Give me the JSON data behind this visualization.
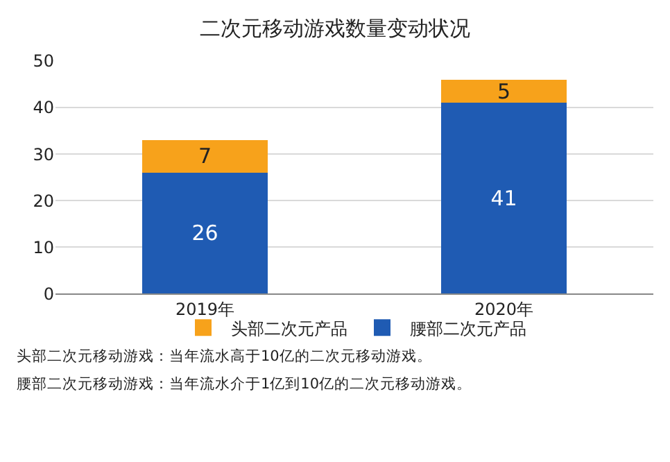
{
  "chart_data": {
    "type": "bar",
    "title": "二次元移动游戏数量变动状况",
    "categories": [
      "2019年",
      "2020年"
    ],
    "stacked": true,
    "series": [
      {
        "name": "腰部二次元产品",
        "color": "#1f5bb3",
        "values": [
          26,
          41
        ]
      },
      {
        "name": "头部二次元产品",
        "color": "#f7a21b",
        "values": [
          7,
          5
        ]
      }
    ],
    "ylim": [
      0,
      50
    ],
    "yticks": [
      0,
      10,
      20,
      30,
      40,
      50
    ],
    "grid": "y",
    "legend": "bottom",
    "data_labels": true,
    "annotations": [
      "头部二次元移动游戏：当年流水高于10亿的二次元移动游戏。",
      "腰部二次元移动游戏：当年流水介于1亿到10亿的二次元移动游戏。"
    ]
  }
}
